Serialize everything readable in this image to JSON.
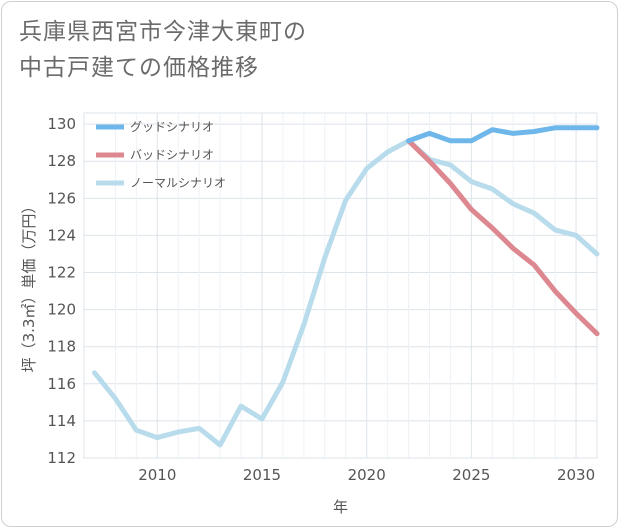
{
  "chart_data": {
    "type": "line",
    "title_lines": [
      "兵庫県西宮市今津大東町の",
      "中古戸建ての価格推移"
    ],
    "xlabel": "年",
    "ylabel": "坪（3.3㎡）単価（万円）",
    "xlim": [
      2006.5,
      2031
    ],
    "ylim": [
      112,
      130.6
    ],
    "xticks": [
      2010,
      2015,
      2020,
      2025,
      2030
    ],
    "yticks": [
      112,
      114,
      116,
      118,
      120,
      122,
      124,
      126,
      128,
      130
    ],
    "grid": true,
    "legend_position": "top-left",
    "series": [
      {
        "name": "グッドシナリオ",
        "color": "#6fb7ea",
        "points": [
          [
            2022,
            129.1
          ],
          [
            2023,
            129.5
          ],
          [
            2024,
            129.1
          ],
          [
            2025,
            129.1
          ],
          [
            2026,
            129.7
          ],
          [
            2027,
            129.5
          ],
          [
            2028,
            129.6
          ],
          [
            2029,
            129.8
          ],
          [
            2030,
            129.8
          ],
          [
            2031,
            129.8
          ]
        ]
      },
      {
        "name": "バッドシナリオ",
        "color": "#dd8790",
        "points": [
          [
            2022,
            129.1
          ],
          [
            2023,
            128.0
          ],
          [
            2024,
            126.8
          ],
          [
            2025,
            125.4
          ],
          [
            2026,
            124.4
          ],
          [
            2027,
            123.3
          ],
          [
            2028,
            122.4
          ],
          [
            2029,
            121.0
          ],
          [
            2030,
            119.8
          ],
          [
            2031,
            118.7
          ]
        ]
      },
      {
        "name": "ノーマルシナリオ",
        "color": "#b9dcec",
        "points": [
          [
            2007,
            116.6
          ],
          [
            2008,
            115.2
          ],
          [
            2009,
            113.5
          ],
          [
            2010,
            113.1
          ],
          [
            2011,
            113.4
          ],
          [
            2012,
            113.6
          ],
          [
            2013,
            112.7
          ],
          [
            2014,
            114.8
          ],
          [
            2015,
            114.1
          ],
          [
            2016,
            116.1
          ],
          [
            2017,
            119.2
          ],
          [
            2018,
            122.8
          ],
          [
            2019,
            125.9
          ],
          [
            2020,
            127.6
          ],
          [
            2021,
            128.5
          ],
          [
            2022,
            129.1
          ],
          [
            2023,
            128.1
          ],
          [
            2024,
            127.8
          ],
          [
            2025,
            126.9
          ],
          [
            2026,
            126.5
          ],
          [
            2027,
            125.7
          ],
          [
            2028,
            125.2
          ],
          [
            2029,
            124.3
          ],
          [
            2030,
            124.0
          ],
          [
            2031,
            123.0
          ]
        ]
      }
    ]
  }
}
